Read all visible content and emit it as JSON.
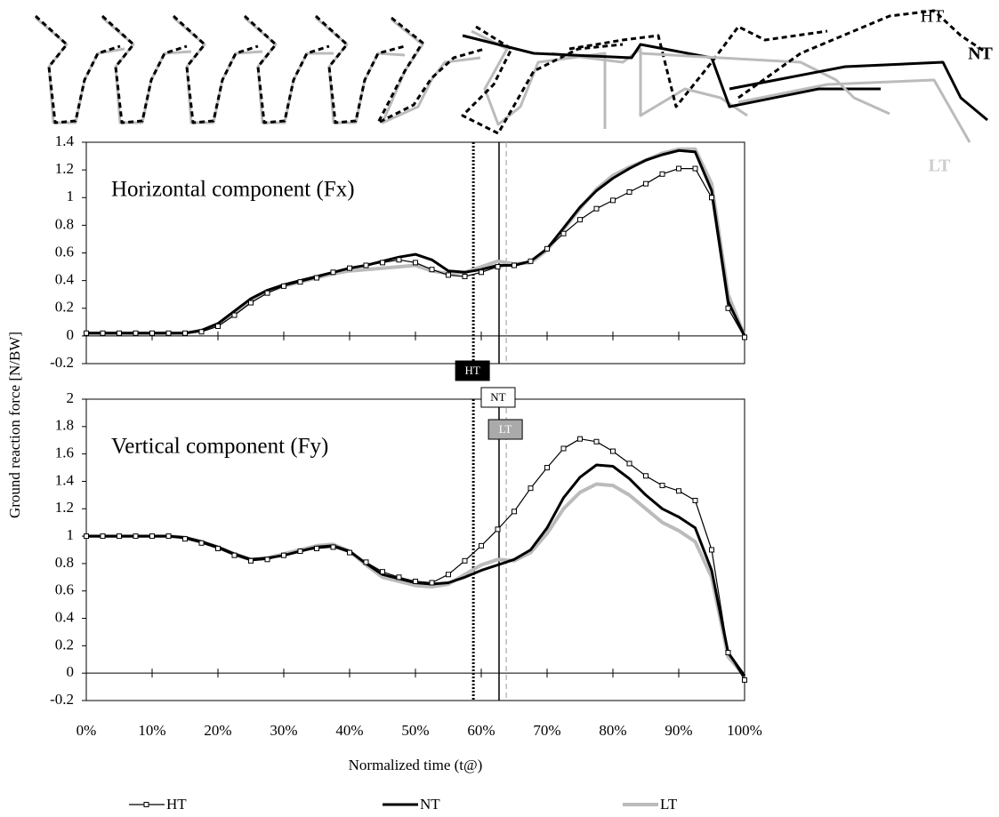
{
  "figure_labels": [
    "HT",
    "NT",
    "LT"
  ],
  "ylabel": "Ground reaction force [N/BW]",
  "events": [
    {
      "label": "HT",
      "x": 58.8,
      "style": "dotted",
      "color": "#000000",
      "box": "#000000",
      "text_color": "#ffffff"
    },
    {
      "label": "NT",
      "x": 62.7,
      "style": "solid",
      "color": "#000000",
      "box": "#ffffff",
      "text_color": "#000000"
    },
    {
      "label": "LT",
      "x": 63.8,
      "style": "dashed",
      "color": "#aaaaaa",
      "box": "#aaaaaa",
      "text_color": "#ffffff"
    }
  ],
  "chart_data": [
    {
      "type": "line",
      "title": "Horizontal component (Fx)",
      "x": [
        0,
        2.5,
        5,
        7.5,
        10,
        12.5,
        15,
        17.5,
        20,
        22.5,
        25,
        27.5,
        30,
        32.5,
        35,
        37.5,
        40,
        42.5,
        45,
        47.5,
        50,
        52.5,
        55,
        57.5,
        60,
        62.5,
        65,
        67.5,
        70,
        72.5,
        75,
        77.5,
        80,
        82.5,
        85,
        87.5,
        90,
        92.5,
        95,
        97.5,
        100
      ],
      "xlim": [
        0,
        100
      ],
      "xticks": [
        0,
        10,
        20,
        30,
        40,
        50,
        60,
        70,
        80,
        90,
        100
      ],
      "ylim": [
        -0.2,
        1.4
      ],
      "yticks": [
        1.4,
        1.2,
        1,
        0.8,
        0.6,
        0.4,
        0.2,
        0,
        -0.2
      ],
      "series": [
        {
          "name": "HT",
          "color": "#000000",
          "line_width": 1.2,
          "marker": "square",
          "values": [
            0.02,
            0.02,
            0.02,
            0.02,
            0.02,
            0.02,
            0.02,
            0.03,
            0.07,
            0.15,
            0.24,
            0.31,
            0.36,
            0.39,
            0.42,
            0.46,
            0.49,
            0.51,
            0.53,
            0.55,
            0.53,
            0.48,
            0.44,
            0.43,
            0.46,
            0.5,
            0.51,
            0.54,
            0.63,
            0.74,
            0.84,
            0.92,
            0.98,
            1.04,
            1.1,
            1.17,
            1.21,
            1.21,
            1.0,
            0.2,
            -0.01
          ]
        },
        {
          "name": "NT",
          "color": "#000000",
          "line_width": 3,
          "values": [
            0.02,
            0.02,
            0.02,
            0.02,
            0.02,
            0.02,
            0.02,
            0.04,
            0.09,
            0.18,
            0.27,
            0.33,
            0.37,
            0.4,
            0.43,
            0.46,
            0.49,
            0.51,
            0.54,
            0.57,
            0.59,
            0.55,
            0.47,
            0.46,
            0.48,
            0.51,
            0.51,
            0.54,
            0.63,
            0.78,
            0.93,
            1.05,
            1.14,
            1.21,
            1.27,
            1.31,
            1.34,
            1.33,
            1.05,
            0.25,
            0
          ]
        },
        {
          "name": "LT",
          "color": "#bbbbbb",
          "line_width": 4,
          "values": [
            0.02,
            0.02,
            0.02,
            0.02,
            0.02,
            0.02,
            0.02,
            0.04,
            0.08,
            0.16,
            0.25,
            0.32,
            0.36,
            0.39,
            0.42,
            0.45,
            0.47,
            0.48,
            0.49,
            0.5,
            0.51,
            0.47,
            0.45,
            0.46,
            0.5,
            0.54,
            0.52,
            0.53,
            0.62,
            0.77,
            0.92,
            1.06,
            1.16,
            1.22,
            1.27,
            1.32,
            1.35,
            1.35,
            1.1,
            0.3,
            0
          ]
        }
      ]
    },
    {
      "type": "line",
      "title": "Vertical component (Fy)",
      "xlabel": "Normalized time (t@)",
      "x": [
        0,
        2.5,
        5,
        7.5,
        10,
        12.5,
        15,
        17.5,
        20,
        22.5,
        25,
        27.5,
        30,
        32.5,
        35,
        37.5,
        40,
        42.5,
        45,
        47.5,
        50,
        52.5,
        55,
        57.5,
        60,
        62.5,
        65,
        67.5,
        70,
        72.5,
        75,
        77.5,
        80,
        82.5,
        85,
        87.5,
        90,
        92.5,
        95,
        97.5,
        100
      ],
      "xlim": [
        0,
        100
      ],
      "xticks": [
        {
          "value": 0,
          "label": "0%"
        },
        {
          "value": 10,
          "label": "10%"
        },
        {
          "value": 20,
          "label": "20%"
        },
        {
          "value": 30,
          "label": "30%"
        },
        {
          "value": 40,
          "label": "40%"
        },
        {
          "value": 50,
          "label": "50%"
        },
        {
          "value": 60,
          "label": "60%"
        },
        {
          "value": 70,
          "label": "70%"
        },
        {
          "value": 80,
          "label": "80%"
        },
        {
          "value": 90,
          "label": "90%"
        },
        {
          "value": 100,
          "label": "100%"
        }
      ],
      "ylim": [
        -0.2,
        2
      ],
      "yticks": [
        2,
        1.8,
        1.6,
        1.4,
        1.2,
        1,
        0.8,
        0.6,
        0.4,
        0.2,
        0,
        -0.2
      ],
      "series": [
        {
          "name": "HT",
          "color": "#000000",
          "line_width": 1.2,
          "marker": "square",
          "values": [
            1,
            1,
            1,
            1,
            1,
            1,
            0.98,
            0.95,
            0.91,
            0.86,
            0.82,
            0.83,
            0.86,
            0.89,
            0.91,
            0.92,
            0.88,
            0.81,
            0.74,
            0.7,
            0.67,
            0.66,
            0.72,
            0.82,
            0.93,
            1.05,
            1.18,
            1.35,
            1.5,
            1.64,
            1.71,
            1.69,
            1.62,
            1.53,
            1.44,
            1.37,
            1.33,
            1.26,
            0.9,
            0.15,
            -0.05
          ]
        },
        {
          "name": "NT",
          "color": "#000000",
          "line_width": 3,
          "values": [
            1,
            1,
            1,
            1,
            1,
            1,
            0.99,
            0.96,
            0.92,
            0.87,
            0.83,
            0.84,
            0.86,
            0.89,
            0.92,
            0.93,
            0.89,
            0.8,
            0.72,
            0.69,
            0.66,
            0.65,
            0.66,
            0.7,
            0.75,
            0.79,
            0.83,
            0.9,
            1.06,
            1.28,
            1.43,
            1.52,
            1.51,
            1.42,
            1.3,
            1.2,
            1.14,
            1.06,
            0.75,
            0.15,
            -0.02
          ]
        },
        {
          "name": "LT",
          "color": "#bbbbbb",
          "line_width": 4,
          "values": [
            1,
            1,
            1,
            1,
            1,
            1,
            0.99,
            0.96,
            0.92,
            0.87,
            0.83,
            0.84,
            0.87,
            0.9,
            0.93,
            0.94,
            0.89,
            0.79,
            0.7,
            0.67,
            0.64,
            0.63,
            0.65,
            0.72,
            0.79,
            0.83,
            0.82,
            0.88,
            1.02,
            1.2,
            1.32,
            1.38,
            1.37,
            1.3,
            1.2,
            1.1,
            1.04,
            0.96,
            0.7,
            0.12,
            -0.02
          ]
        }
      ]
    }
  ]
}
